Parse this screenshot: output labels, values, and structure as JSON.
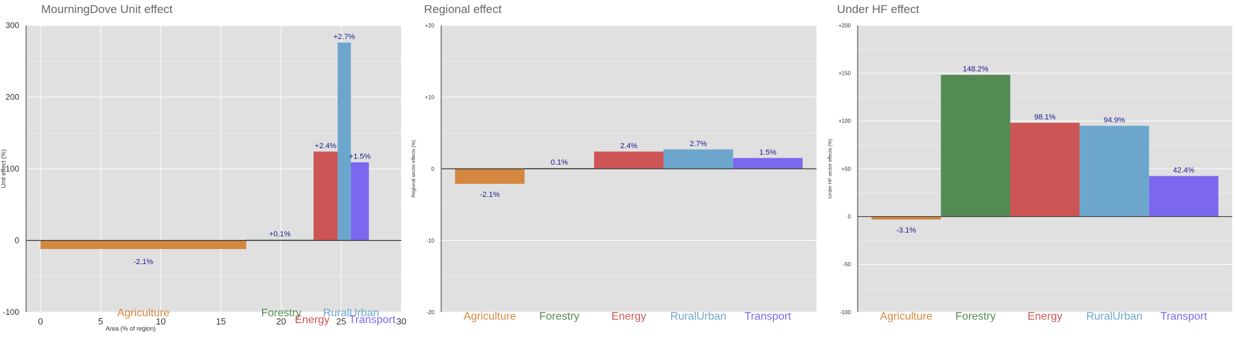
{
  "colors": {
    "Agriculture": "#d4883f",
    "Forestry": "#548b54",
    "Energy": "#cd5555",
    "RuralUrban": "#6ca6cd",
    "Transport": "#7b68ee",
    "panel_bg": "#e0e0e0",
    "grid": "#ffffff",
    "label_text": "#1a1a8c"
  },
  "chart_data": [
    {
      "type": "bar",
      "variant": "variable-width",
      "title": "MourningDove Unit effect",
      "xlabel": "Area (% of region)",
      "ylabel": "Unit effect (%)",
      "xlim": [
        -1.2,
        30
      ],
      "ylim": [
        -100,
        300
      ],
      "x_ticks": [
        "0",
        "5",
        "10",
        "15",
        "20",
        "25",
        "30"
      ],
      "y_ticks": [
        "300",
        "200",
        "100",
        "0",
        "-100"
      ],
      "grid": true,
      "categories": [
        "Agriculture",
        "Forestry",
        "Energy",
        "RuralUrban",
        "Transport"
      ],
      "x_start": [
        0,
        17.1,
        22.7,
        24.7,
        25.8
      ],
      "x_end": [
        17.1,
        22.7,
        24.7,
        25.8,
        27.3
      ],
      "values": [
        -12,
        1,
        124,
        276,
        109
      ],
      "data_labels": [
        "-2.1%",
        "+0.1%",
        "+2.4%",
        "+2.7%",
        "+1.5%"
      ],
      "category_labels": [
        "Agriculture",
        "Forestry",
        "Energy",
        "RuralUrban",
        "Transport"
      ]
    },
    {
      "type": "bar",
      "title": "Regional effect",
      "xlabel": "",
      "ylabel": "Regional sector effects (%)",
      "ylim": [
        -20,
        20
      ],
      "y_ticks": [
        "+20",
        "+10",
        "0",
        "-10",
        "-20"
      ],
      "grid": true,
      "categories": [
        "Agriculture",
        "Forestry",
        "Energy",
        "RuralUrban",
        "Transport"
      ],
      "values": [
        -2.1,
        0.1,
        2.4,
        2.7,
        1.5
      ],
      "data_labels": [
        "-2.1%",
        "0.1%",
        "2.4%",
        "2.7%",
        "1.5%"
      ],
      "category_labels": [
        "Agriculture",
        "Forestry",
        "Energy",
        "RuralUrban",
        "Transport"
      ]
    },
    {
      "type": "bar",
      "title": "Under HF effect",
      "xlabel": "",
      "ylabel": "Under HF sector effects (%)",
      "ylim": [
        -100,
        200
      ],
      "y_ticks": [
        "+200",
        "+150",
        "+100",
        "+50",
        "0",
        "-50",
        "-100"
      ],
      "grid": true,
      "categories": [
        "Agriculture",
        "Forestry",
        "Energy",
        "RuralUrban",
        "Transport"
      ],
      "values": [
        -3.1,
        148.2,
        98.1,
        94.9,
        42.4
      ],
      "data_labels": [
        "-3.1%",
        "148.2%",
        "98.1%",
        "94.9%",
        "42.4%"
      ],
      "category_labels": [
        "Agriculture",
        "Forestry",
        "Energy",
        "RuralUrban",
        "Transport"
      ]
    }
  ]
}
